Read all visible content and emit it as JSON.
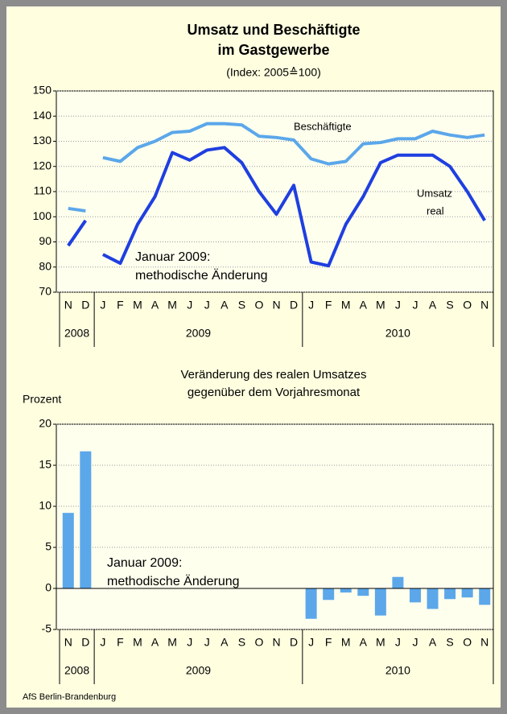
{
  "source": "AfS Berlin-Brandenburg",
  "chart_data": [
    {
      "type": "line",
      "title": [
        "Umsatz und Beschäftigte",
        "im Gastgewerbe"
      ],
      "subtitle": "(Index: 2005≙100)",
      "categories": [
        "N",
        "D",
        "J",
        "F",
        "M",
        "A",
        "M",
        "J",
        "J",
        "A",
        "S",
        "O",
        "N",
        "D",
        "J",
        "F",
        "M",
        "A",
        "M",
        "J",
        "J",
        "A",
        "S",
        "O",
        "N"
      ],
      "x_groups": [
        {
          "label": "2008",
          "count": 2
        },
        {
          "label": "2009",
          "count": 12
        },
        {
          "label": "2010",
          "count": 11
        }
      ],
      "break_after": 1,
      "series": [
        {
          "name": "Beschäftigte",
          "color": "#5ba7ea",
          "values": [
            103.3,
            102.3,
            123.5,
            122,
            127.5,
            130,
            133.5,
            134,
            137,
            137,
            136.5,
            132,
            131.5,
            130.5,
            123,
            121,
            122,
            129,
            129.5,
            131,
            131,
            134,
            132.5,
            131.5,
            132.5
          ]
        },
        {
          "name": "Umsatz real",
          "color": "#1f3fe0",
          "values": [
            88.5,
            98.5,
            85,
            81.5,
            97,
            108,
            125.5,
            122.5,
            126.5,
            127.5,
            121.5,
            110,
            101,
            112.5,
            82,
            80.5,
            97,
            108,
            121.5,
            124.5,
            124.5,
            124.5,
            120,
            110,
            98.5
          ]
        }
      ],
      "annotations": [
        "Beschäftigte",
        "Umsatz",
        "real",
        "Januar 2009:",
        "methodische Änderung"
      ],
      "ylim": [
        70,
        150
      ],
      "yticks": [
        70,
        80,
        90,
        100,
        110,
        120,
        130,
        140,
        150
      ],
      "grid": true
    },
    {
      "type": "bar",
      "title": [
        "Veränderung des realen Umsatzes",
        "gegenüber dem Vorjahresmonat"
      ],
      "ylabel": "Prozent",
      "categories": [
        "N",
        "D",
        "J",
        "F",
        "M",
        "A",
        "M",
        "J",
        "J",
        "A",
        "S",
        "O",
        "N",
        "D",
        "J",
        "F",
        "M",
        "A",
        "M",
        "J",
        "J",
        "A",
        "S",
        "O",
        "N"
      ],
      "x_groups": [
        {
          "label": "2008",
          "count": 2
        },
        {
          "label": "2009",
          "count": 12
        },
        {
          "label": "2010",
          "count": 11
        }
      ],
      "values": [
        9.2,
        16.7,
        null,
        null,
        null,
        null,
        null,
        null,
        null,
        null,
        null,
        null,
        null,
        null,
        -3.7,
        -1.4,
        -0.5,
        -0.9,
        -3.3,
        1.4,
        -1.7,
        -2.5,
        -1.3,
        -1.1,
        -2
      ],
      "color": "#5ba7ea",
      "annotations": [
        "Januar 2009:",
        "methodische Änderung"
      ],
      "ylim": [
        -5,
        20
      ],
      "yticks": [
        -5,
        0,
        5,
        10,
        15,
        20
      ],
      "grid": true
    }
  ]
}
